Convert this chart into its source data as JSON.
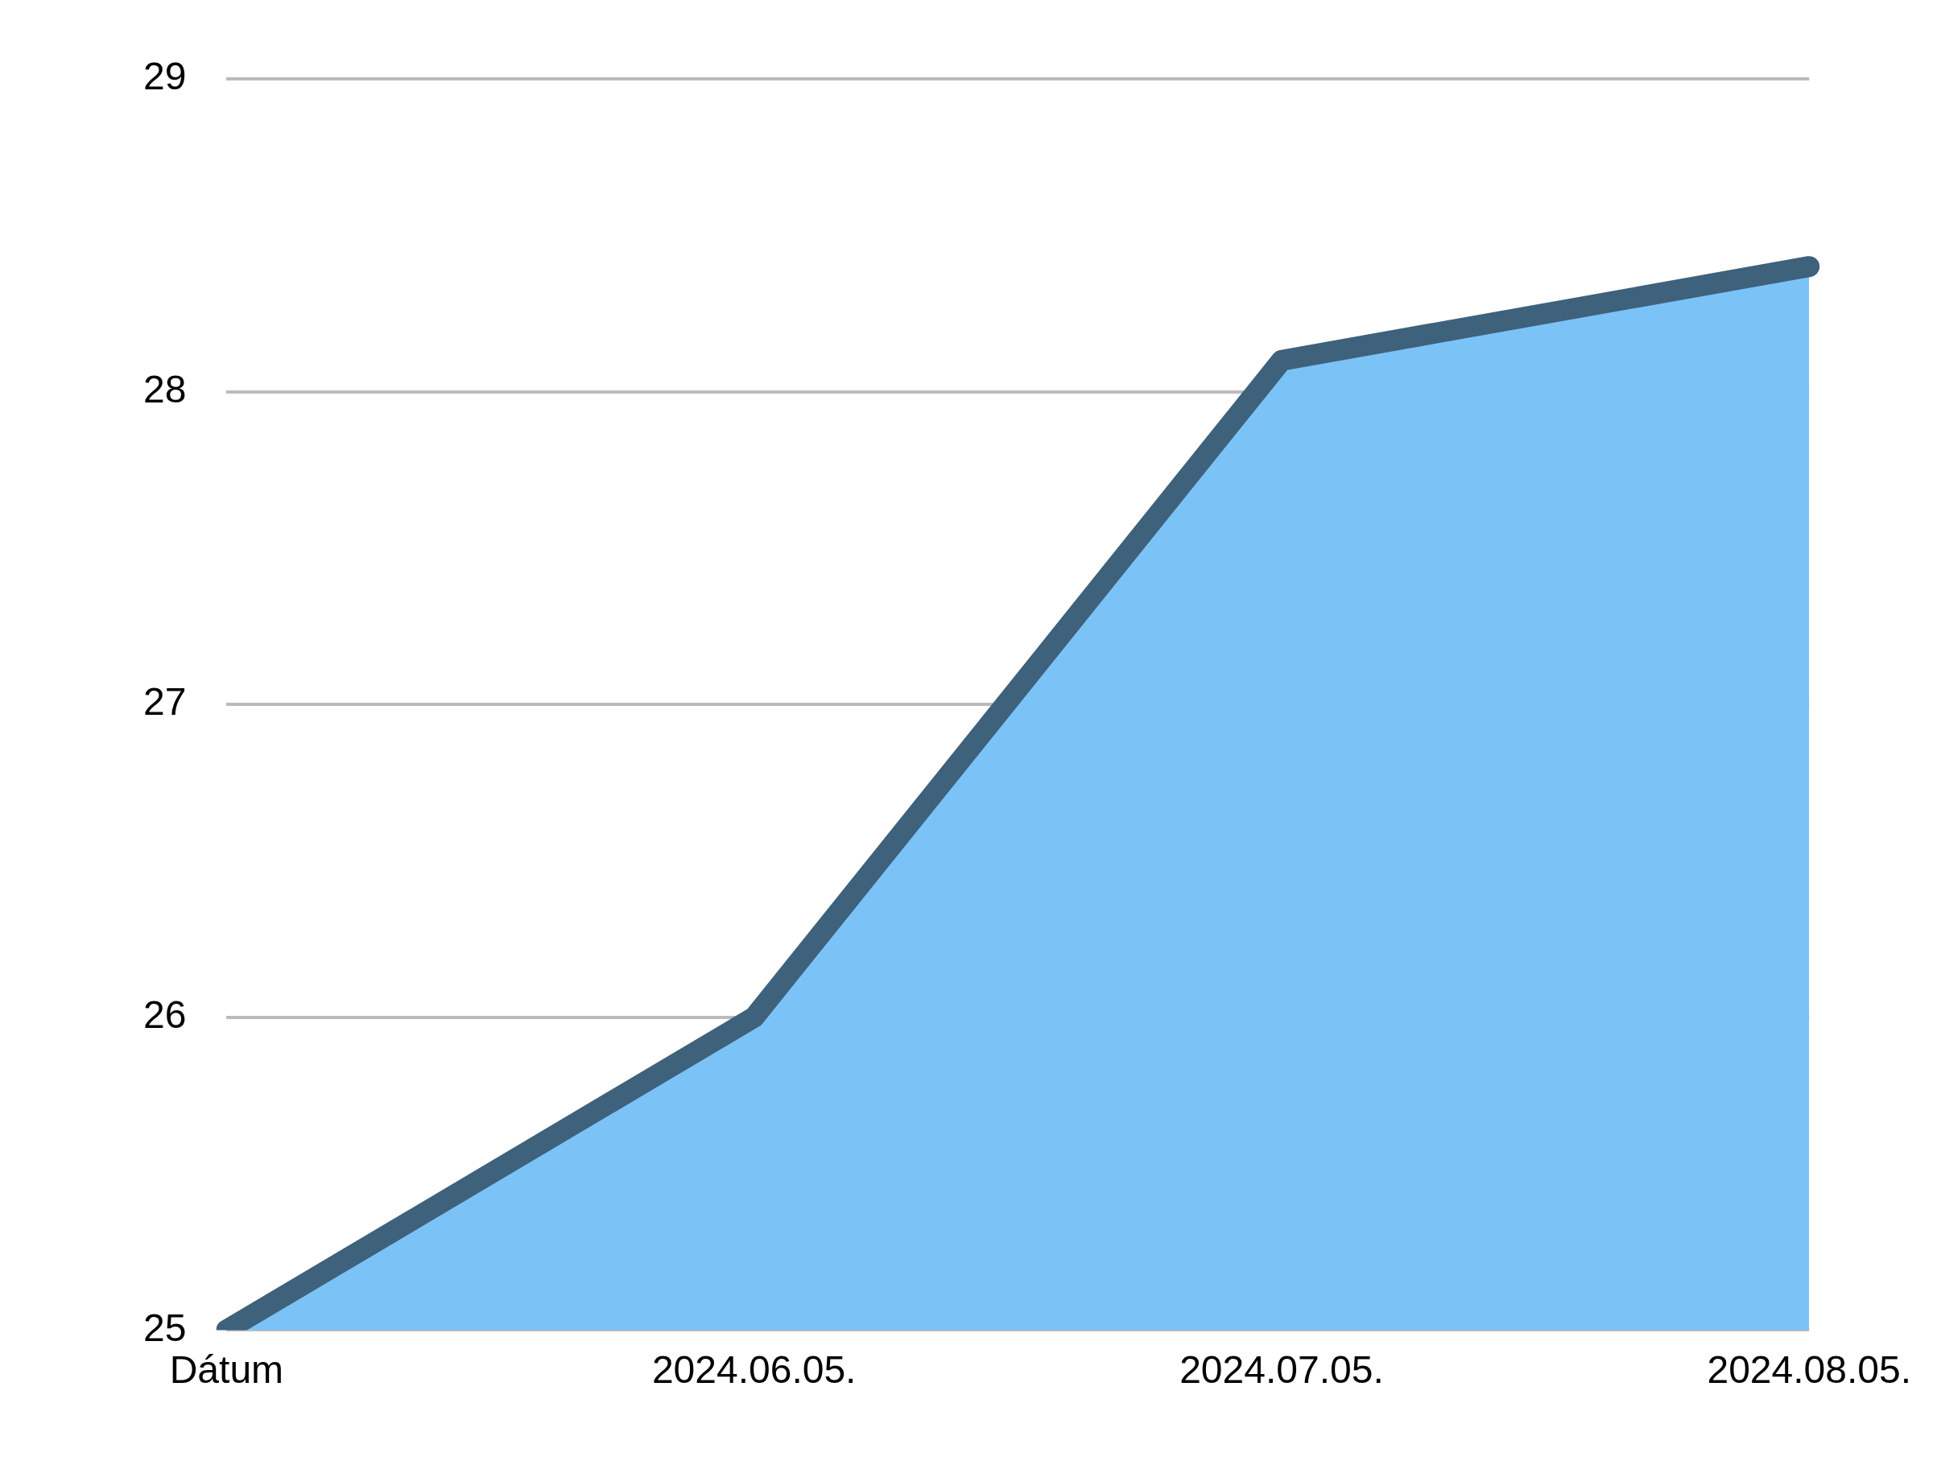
{
  "chart_data": {
    "type": "area",
    "categories": [
      "Dátum",
      "2024.06.05.",
      "2024.07.05.",
      "2024.08.05."
    ],
    "series": [
      {
        "color": "#7bc2f7",
        "values": [
          25,
          26,
          28.1,
          28.4
        ]
      }
    ],
    "ylim": [
      25,
      29
    ],
    "yticks": [
      25,
      26,
      27,
      28,
      29
    ],
    "grid": "y",
    "legend": false,
    "marker": "none"
  }
}
